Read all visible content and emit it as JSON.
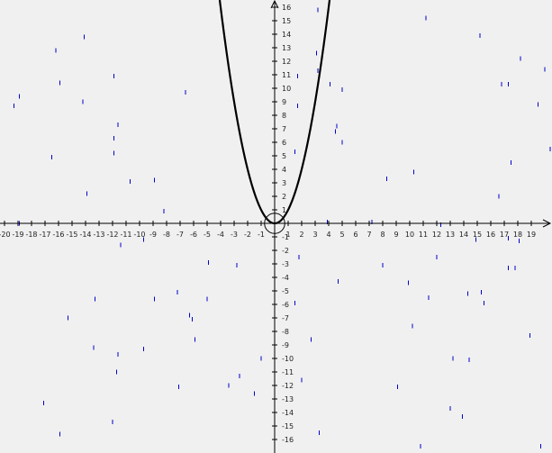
{
  "chart_data": {
    "type": "line",
    "title": "",
    "xlabel": "",
    "ylabel": "",
    "xlim": [
      -20.3,
      20.4
    ],
    "ylim": [
      -16.8,
      16.6
    ],
    "grid": false,
    "x_ticks": [
      -20,
      -19,
      -18,
      -17,
      -16,
      -15,
      -14,
      -13,
      -12,
      -11,
      -10,
      -9,
      -8,
      -7,
      -6,
      -5,
      -4,
      -3,
      -2,
      -1,
      1,
      2,
      3,
      4,
      5,
      6,
      7,
      8,
      9,
      10,
      11,
      12,
      13,
      14,
      15,
      16,
      17,
      18,
      19
    ],
    "y_ticks": [
      -16,
      -15,
      -14,
      -13,
      -12,
      -11,
      -10,
      -9,
      -8,
      -7,
      -6,
      -5,
      -4,
      -3,
      -2,
      -1,
      1,
      2,
      3,
      4,
      5,
      6,
      7,
      8,
      9,
      10,
      11,
      12,
      13,
      14,
      15,
      16
    ],
    "curve": {
      "equation": "y = x^2",
      "x_range": [
        -4.1,
        4.2
      ],
      "color": "#000000"
    },
    "origin_circle": {
      "center": [
        0,
        0
      ],
      "radius": 0.75
    },
    "scatter_marks": {
      "color": "#0000cc",
      "points": [
        [
          -19.3,
          8.7
        ],
        [
          -18.9,
          9.4
        ],
        [
          -16.2,
          12.8
        ],
        [
          -15.9,
          10.4
        ],
        [
          -14.1,
          13.8
        ],
        [
          -14.2,
          9.0
        ],
        [
          -11.9,
          10.9
        ],
        [
          -11.6,
          7.3
        ],
        [
          -11.9,
          6.3
        ],
        [
          -11.9,
          5.2
        ],
        [
          -16.5,
          4.9
        ],
        [
          -13.9,
          2.2
        ],
        [
          -10.7,
          3.1
        ],
        [
          -8.9,
          3.2
        ],
        [
          -8.2,
          0.9
        ],
        [
          -6.6,
          9.7
        ],
        [
          -18.9,
          0.0
        ],
        [
          -11.4,
          -1.6
        ],
        [
          -9.7,
          -1.2
        ],
        [
          -4.9,
          -2.9
        ],
        [
          -2.8,
          -3.1
        ],
        [
          -13.3,
          -5.6
        ],
        [
          -8.9,
          -5.6
        ],
        [
          -7.2,
          -5.1
        ],
        [
          -5.0,
          -5.6
        ],
        [
          -15.3,
          -7.0
        ],
        [
          -6.3,
          -6.8
        ],
        [
          -6.1,
          -7.1
        ],
        [
          -5.9,
          -8.6
        ],
        [
          -13.4,
          -9.2
        ],
        [
          -11.6,
          -9.7
        ],
        [
          -9.7,
          -9.3
        ],
        [
          -11.7,
          -11.0
        ],
        [
          -7.1,
          -12.1
        ],
        [
          -2.6,
          -11.3
        ],
        [
          -1.0,
          -10.0
        ],
        [
          -3.4,
          -12.0
        ],
        [
          -1.5,
          -12.6
        ],
        [
          -17.1,
          -13.3
        ],
        [
          -15.9,
          -15.6
        ],
        [
          -12.0,
          -14.7
        ],
        [
          3.2,
          15.8
        ],
        [
          11.2,
          15.2
        ],
        [
          15.2,
          13.9
        ],
        [
          20.0,
          11.4
        ],
        [
          18.2,
          12.2
        ],
        [
          3.1,
          12.6
        ],
        [
          3.2,
          11.3
        ],
        [
          1.7,
          10.9
        ],
        [
          4.1,
          10.3
        ],
        [
          5.0,
          9.9
        ],
        [
          1.7,
          8.7
        ],
        [
          16.8,
          10.3
        ],
        [
          17.3,
          10.3
        ],
        [
          19.5,
          8.8
        ],
        [
          4.6,
          7.2
        ],
        [
          4.5,
          6.8
        ],
        [
          5.0,
          6.0
        ],
        [
          1.5,
          5.3
        ],
        [
          17.5,
          4.5
        ],
        [
          10.3,
          3.8
        ],
        [
          8.3,
          3.3
        ],
        [
          20.4,
          5.5
        ],
        [
          16.6,
          2.0
        ],
        [
          3.9,
          0.1
        ],
        [
          7.2,
          0.1
        ],
        [
          12.3,
          -0.1
        ],
        [
          14.9,
          -1.2
        ],
        [
          17.3,
          -1.1
        ],
        [
          18.1,
          -1.3
        ],
        [
          1.8,
          -2.5
        ],
        [
          8.0,
          -3.1
        ],
        [
          12.0,
          -2.5
        ],
        [
          17.3,
          -3.3
        ],
        [
          17.8,
          -3.3
        ],
        [
          4.7,
          -4.3
        ],
        [
          9.9,
          -4.4
        ],
        [
          11.4,
          -5.5
        ],
        [
          14.3,
          -5.2
        ],
        [
          15.3,
          -5.1
        ],
        [
          15.5,
          -5.9
        ],
        [
          1.5,
          -5.9
        ],
        [
          10.2,
          -7.6
        ],
        [
          2.7,
          -8.6
        ],
        [
          18.9,
          -8.3
        ],
        [
          13.2,
          -10.0
        ],
        [
          14.4,
          -10.1
        ],
        [
          2.0,
          -11.6
        ],
        [
          9.1,
          -12.1
        ],
        [
          13.0,
          -13.7
        ],
        [
          13.9,
          -14.3
        ],
        [
          3.3,
          -15.5
        ],
        [
          10.8,
          -16.5
        ],
        [
          19.7,
          -16.5
        ]
      ]
    }
  }
}
